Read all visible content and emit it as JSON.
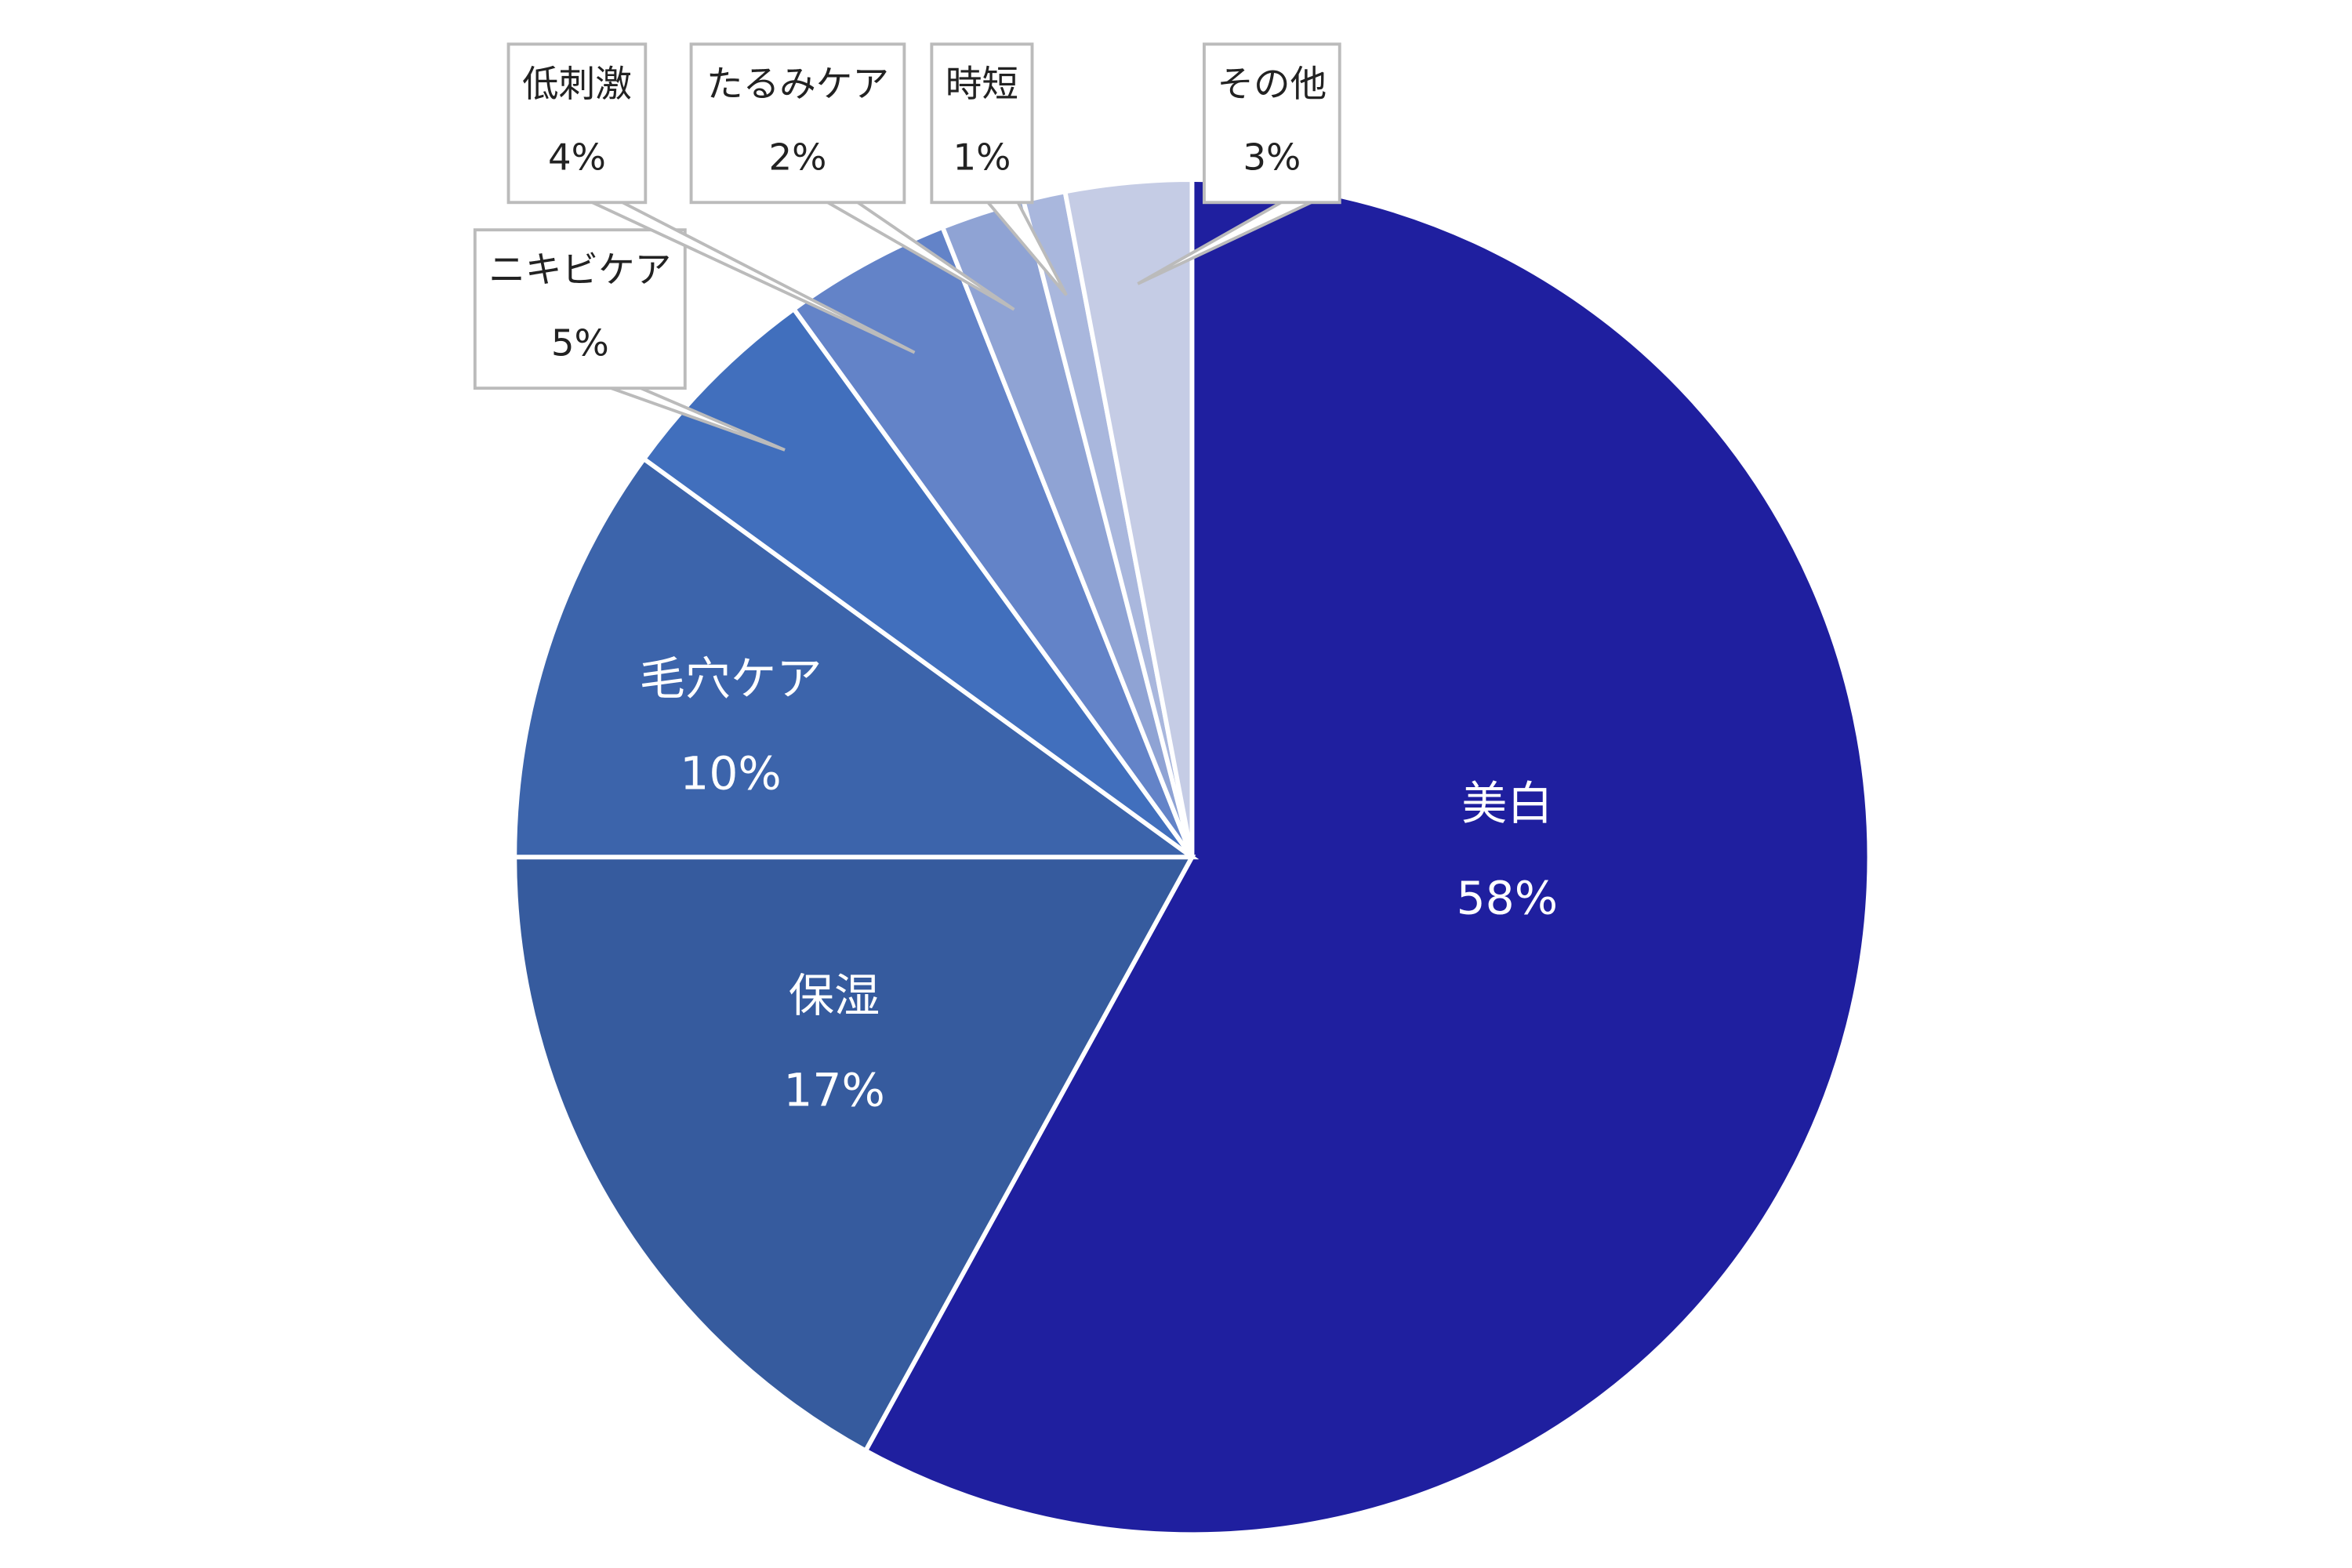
{
  "chart_data": {
    "type": "pie",
    "categories": [
      "美白",
      "保湿",
      "毛穴ケア",
      "ニキビケア",
      "低刺激",
      "たるみケア",
      "時短",
      "その他"
    ],
    "values": [
      58,
      17,
      10,
      5,
      4,
      2,
      1,
      3
    ],
    "value_labels": [
      "58%",
      "17%",
      "10%",
      "5%",
      "4%",
      "2%",
      "1%",
      "3%"
    ],
    "colors": [
      "#1f1f9f",
      "#365b9e",
      "#3c64ab",
      "#416fbd",
      "#6383c8",
      "#8fa3d4",
      "#a9b7dd",
      "#c5cce5"
    ]
  }
}
